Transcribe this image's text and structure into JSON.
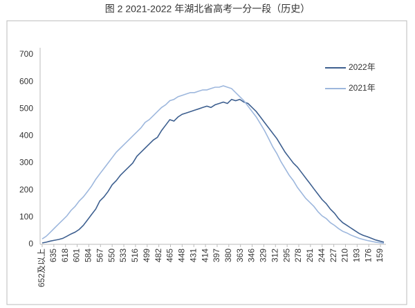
{
  "chart_data": {
    "type": "line",
    "title": "图 2 2021-2022 年湖北省高考一分一段（历史）",
    "x": [
      652,
      646,
      640,
      634,
      628,
      622,
      616,
      610,
      604,
      598,
      592,
      586,
      580,
      574,
      568,
      562,
      556,
      550,
      544,
      538,
      532,
      526,
      520,
      514,
      508,
      502,
      496,
      490,
      484,
      478,
      472,
      466,
      460,
      454,
      448,
      442,
      436,
      430,
      424,
      418,
      412,
      406,
      400,
      394,
      388,
      382,
      376,
      370,
      364,
      358,
      352,
      346,
      340,
      334,
      328,
      322,
      316,
      310,
      304,
      298,
      292,
      286,
      280,
      274,
      268,
      262,
      256,
      250,
      244,
      238,
      232,
      226,
      220,
      214,
      208,
      202,
      196,
      190,
      184,
      178,
      172,
      166,
      160,
      154
    ],
    "series": [
      {
        "name": "2022年",
        "color": "#3d5f8f",
        "values": [
          5,
          8,
          12,
          15,
          18,
          22,
          30,
          38,
          45,
          55,
          70,
          90,
          110,
          130,
          160,
          175,
          195,
          220,
          235,
          255,
          270,
          285,
          300,
          325,
          340,
          355,
          370,
          385,
          395,
          420,
          440,
          460,
          455,
          470,
          480,
          485,
          490,
          495,
          500,
          505,
          510,
          505,
          515,
          520,
          525,
          520,
          535,
          530,
          535,
          525,
          520,
          505,
          490,
          470,
          450,
          430,
          410,
          390,
          365,
          340,
          320,
          300,
          285,
          265,
          245,
          225,
          205,
          185,
          165,
          150,
          130,
          115,
          95,
          80,
          70,
          60,
          50,
          40,
          33,
          28,
          22,
          16,
          12,
          8
        ]
      },
      {
        "name": "2021年",
        "color": "#9db7dd",
        "values": [
          20,
          30,
          45,
          60,
          75,
          90,
          105,
          125,
          140,
          160,
          175,
          195,
          215,
          240,
          260,
          280,
          300,
          320,
          340,
          355,
          370,
          385,
          400,
          415,
          430,
          450,
          460,
          475,
          490,
          505,
          515,
          530,
          535,
          545,
          550,
          555,
          560,
          560,
          565,
          570,
          570,
          575,
          580,
          580,
          585,
          580,
          575,
          560,
          545,
          530,
          510,
          490,
          470,
          445,
          420,
          390,
          360,
          335,
          305,
          280,
          255,
          235,
          210,
          190,
          170,
          155,
          140,
          120,
          105,
          95,
          80,
          70,
          58,
          48,
          42,
          34,
          28,
          22,
          18,
          14,
          11,
          8,
          6,
          4
        ]
      }
    ],
    "xlim": [
      655,
      151
    ],
    "xticks": [
      {
        "value": 652,
        "label": "652及以上"
      },
      635,
      618,
      601,
      584,
      567,
      550,
      533,
      516,
      499,
      482,
      465,
      448,
      431,
      414,
      397,
      380,
      363,
      346,
      329,
      312,
      295,
      278,
      261,
      244,
      227,
      210,
      193,
      176,
      159
    ],
    "ylim": [
      0,
      700
    ],
    "yticks": [
      0,
      100,
      200,
      300,
      400,
      500,
      600,
      700
    ],
    "grid": false,
    "legend": "upper-right"
  }
}
